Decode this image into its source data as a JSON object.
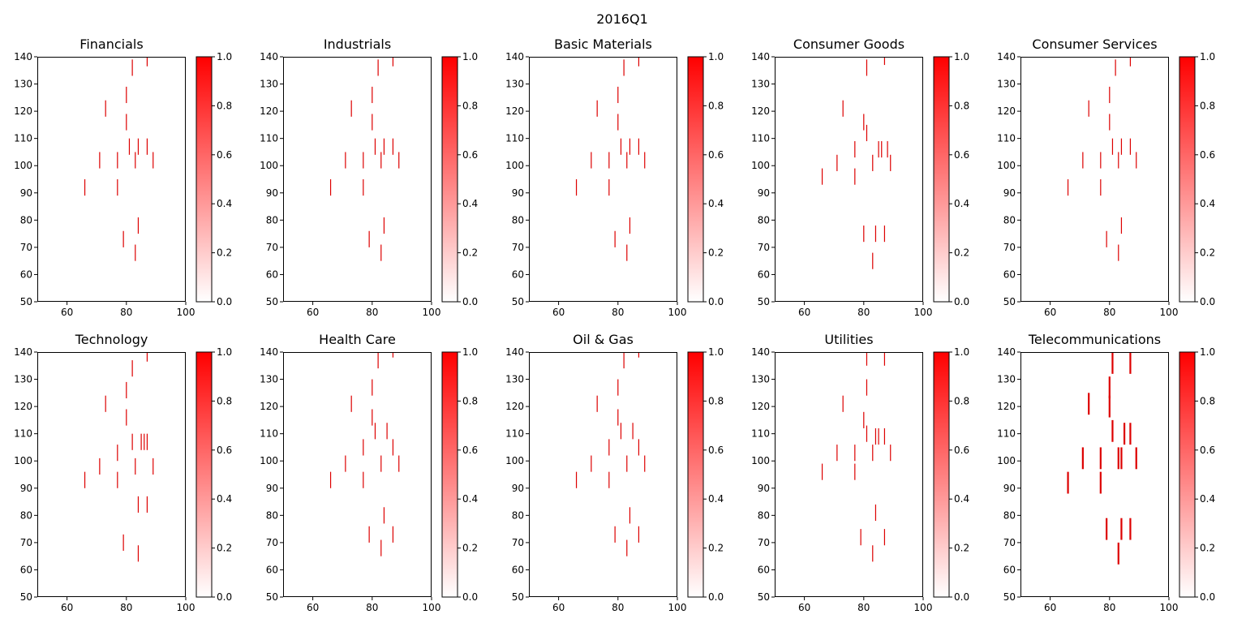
{
  "figure": {
    "suptitle": "2016Q1"
  },
  "axes_common": {
    "xlim": [
      50,
      100
    ],
    "ylim": [
      50,
      140
    ],
    "xticks": [
      60,
      80,
      100
    ],
    "yticks": [
      50,
      60,
      70,
      80,
      90,
      100,
      110,
      120,
      130,
      140
    ],
    "colorbar": {
      "range": [
        0.0,
        1.0
      ],
      "ticks": [
        "0.0",
        "0.2",
        "0.4",
        "0.6",
        "0.8",
        "1.0"
      ],
      "colormap": [
        "#ffffff",
        "#ff0000"
      ]
    },
    "mark_color": "#dd0000"
  },
  "chart_data": [
    {
      "type": "heatmap",
      "title": "Financials",
      "cells": [
        [
          87,
          139,
          3
        ],
        [
          82,
          136,
          4
        ],
        [
          80,
          126,
          4
        ],
        [
          73,
          121,
          4
        ],
        [
          80,
          116,
          4
        ],
        [
          81,
          107,
          4
        ],
        [
          84,
          107,
          4
        ],
        [
          87,
          107,
          4
        ],
        [
          71,
          102,
          4
        ],
        [
          77,
          102,
          4
        ],
        [
          83,
          102,
          4
        ],
        [
          89,
          102,
          4
        ],
        [
          66,
          92,
          4
        ],
        [
          77,
          92,
          4
        ],
        [
          84,
          78,
          4
        ],
        [
          79,
          73,
          4
        ],
        [
          83,
          68,
          4
        ]
      ]
    },
    {
      "type": "heatmap",
      "title": "Industrials",
      "cells": [
        [
          87,
          139,
          3
        ],
        [
          82,
          136,
          4
        ],
        [
          80,
          126,
          4
        ],
        [
          73,
          121,
          4
        ],
        [
          80,
          116,
          4
        ],
        [
          81,
          107,
          4
        ],
        [
          84,
          107,
          4
        ],
        [
          87,
          107,
          4
        ],
        [
          71,
          102,
          4
        ],
        [
          77,
          102,
          4
        ],
        [
          83,
          102,
          4
        ],
        [
          89,
          102,
          4
        ],
        [
          66,
          92,
          4
        ],
        [
          77,
          92,
          4
        ],
        [
          84,
          78,
          4
        ],
        [
          79,
          73,
          4
        ],
        [
          83,
          68,
          4
        ]
      ]
    },
    {
      "type": "heatmap",
      "title": "Basic Materials",
      "cells": [
        [
          87,
          139,
          3
        ],
        [
          82,
          136,
          4
        ],
        [
          80,
          126,
          4
        ],
        [
          73,
          121,
          4
        ],
        [
          80,
          116,
          4
        ],
        [
          81,
          107,
          4
        ],
        [
          84,
          107,
          4
        ],
        [
          87,
          107,
          4
        ],
        [
          71,
          102,
          4
        ],
        [
          77,
          102,
          4
        ],
        [
          83,
          102,
          4
        ],
        [
          89,
          102,
          4
        ],
        [
          66,
          92,
          4
        ],
        [
          77,
          92,
          4
        ],
        [
          84,
          78,
          4
        ],
        [
          79,
          73,
          4
        ],
        [
          83,
          68,
          4
        ]
      ]
    },
    {
      "type": "heatmap",
      "title": "Consumer Goods",
      "cells": [
        [
          87,
          139,
          2
        ],
        [
          81,
          136,
          4
        ],
        [
          73,
          121,
          4
        ],
        [
          80,
          116,
          4
        ],
        [
          81,
          112,
          4
        ],
        [
          77,
          106,
          4
        ],
        [
          85,
          106,
          4
        ],
        [
          86,
          106,
          4
        ],
        [
          88,
          106,
          4
        ],
        [
          71,
          101,
          4
        ],
        [
          83,
          101,
          4
        ],
        [
          89,
          101,
          4
        ],
        [
          66,
          96,
          4
        ],
        [
          77,
          96,
          4
        ],
        [
          80,
          75,
          4
        ],
        [
          84,
          75,
          4
        ],
        [
          87,
          75,
          4
        ],
        [
          83,
          65,
          4
        ]
      ]
    },
    {
      "type": "heatmap",
      "title": "Consumer Services",
      "cells": [
        [
          87,
          139,
          3
        ],
        [
          82,
          136,
          4
        ],
        [
          80,
          126,
          4
        ],
        [
          73,
          121,
          4
        ],
        [
          80,
          116,
          4
        ],
        [
          81,
          107,
          4
        ],
        [
          84,
          107,
          4
        ],
        [
          87,
          107,
          4
        ],
        [
          71,
          102,
          4
        ],
        [
          77,
          102,
          4
        ],
        [
          83,
          102,
          4
        ],
        [
          89,
          102,
          4
        ],
        [
          66,
          92,
          4
        ],
        [
          77,
          92,
          4
        ],
        [
          84,
          78,
          4
        ],
        [
          79,
          73,
          4
        ],
        [
          83,
          68,
          4
        ]
      ]
    },
    {
      "type": "heatmap",
      "title": "Technology",
      "cells": [
        [
          87,
          139,
          3
        ],
        [
          82,
          134,
          4
        ],
        [
          80,
          126,
          4
        ],
        [
          73,
          121,
          4
        ],
        [
          80,
          116,
          4
        ],
        [
          82,
          107,
          4
        ],
        [
          85,
          107,
          4
        ],
        [
          86,
          107,
          4
        ],
        [
          87,
          107,
          4
        ],
        [
          77,
          103,
          4
        ],
        [
          71,
          98,
          4
        ],
        [
          83,
          98,
          4
        ],
        [
          89,
          98,
          4
        ],
        [
          66,
          93,
          4
        ],
        [
          77,
          93,
          4
        ],
        [
          84,
          84,
          4
        ],
        [
          87,
          84,
          4
        ],
        [
          79,
          70,
          4
        ],
        [
          84,
          66,
          4
        ]
      ]
    },
    {
      "type": "heatmap",
      "title": "Health Care",
      "cells": [
        [
          87,
          140,
          2
        ],
        [
          82,
          137,
          4
        ],
        [
          80,
          127,
          4
        ],
        [
          73,
          121,
          4
        ],
        [
          80,
          116,
          4
        ],
        [
          81,
          111,
          4
        ],
        [
          85,
          111,
          4
        ],
        [
          77,
          105,
          4
        ],
        [
          87,
          105,
          4
        ],
        [
          71,
          99,
          4
        ],
        [
          83,
          99,
          4
        ],
        [
          89,
          99,
          4
        ],
        [
          66,
          93,
          4
        ],
        [
          77,
          93,
          4
        ],
        [
          84,
          80,
          4
        ],
        [
          79,
          73,
          4
        ],
        [
          87,
          73,
          4
        ],
        [
          83,
          68,
          4
        ]
      ]
    },
    {
      "type": "heatmap",
      "title": "Oil & Gas",
      "cells": [
        [
          87,
          140,
          2
        ],
        [
          82,
          137,
          4
        ],
        [
          80,
          127,
          4
        ],
        [
          73,
          121,
          4
        ],
        [
          80,
          116,
          4
        ],
        [
          81,
          111,
          4
        ],
        [
          85,
          111,
          4
        ],
        [
          77,
          105,
          4
        ],
        [
          87,
          105,
          4
        ],
        [
          71,
          99,
          4
        ],
        [
          83,
          99,
          4
        ],
        [
          89,
          99,
          4
        ],
        [
          66,
          93,
          4
        ],
        [
          77,
          93,
          4
        ],
        [
          84,
          80,
          4
        ],
        [
          79,
          73,
          4
        ],
        [
          87,
          73,
          4
        ],
        [
          83,
          68,
          4
        ]
      ]
    },
    {
      "type": "heatmap",
      "title": "Utilities",
      "cells": [
        [
          81,
          138,
          4
        ],
        [
          87,
          138,
          4
        ],
        [
          81,
          127,
          4
        ],
        [
          73,
          121,
          4
        ],
        [
          80,
          115,
          4
        ],
        [
          81,
          110,
          4
        ],
        [
          84,
          109,
          4
        ],
        [
          85,
          109,
          4
        ],
        [
          87,
          109,
          4
        ],
        [
          71,
          103,
          4
        ],
        [
          77,
          103,
          4
        ],
        [
          83,
          103,
          4
        ],
        [
          89,
          103,
          4
        ],
        [
          66,
          96,
          4
        ],
        [
          77,
          96,
          4
        ],
        [
          84,
          81,
          4
        ],
        [
          79,
          72,
          4
        ],
        [
          87,
          72,
          4
        ],
        [
          83,
          66,
          4
        ]
      ]
    },
    {
      "type": "heatmap",
      "title": "Telecommunications",
      "cells": [
        [
          81,
          136,
          6
        ],
        [
          87,
          136,
          6
        ],
        [
          80,
          127,
          6
        ],
        [
          73,
          121,
          6
        ],
        [
          80,
          120,
          6
        ],
        [
          81,
          111,
          6
        ],
        [
          85,
          110,
          6
        ],
        [
          87,
          110,
          6
        ],
        [
          71,
          101,
          6
        ],
        [
          77,
          101,
          6
        ],
        [
          83,
          101,
          6
        ],
        [
          84,
          101,
          6
        ],
        [
          89,
          101,
          6
        ],
        [
          66,
          92,
          6
        ],
        [
          77,
          92,
          6
        ],
        [
          79,
          75,
          6
        ],
        [
          84,
          75,
          6
        ],
        [
          87,
          75,
          6
        ],
        [
          83,
          66,
          6
        ]
      ]
    }
  ]
}
